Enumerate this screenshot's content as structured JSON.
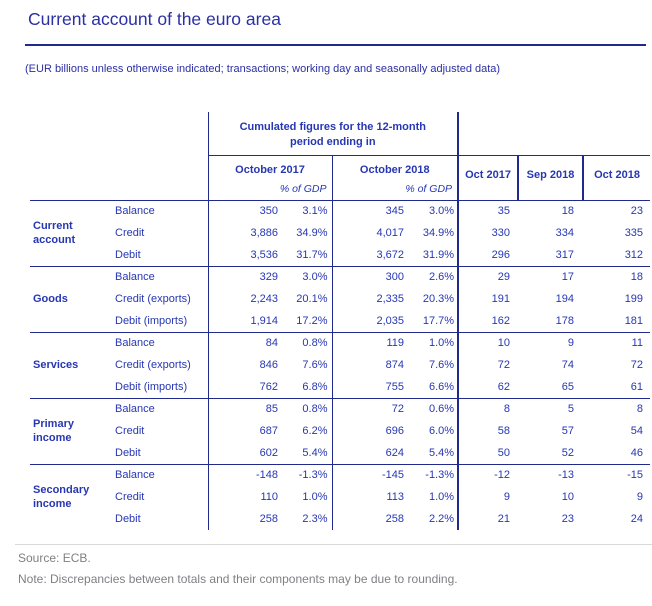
{
  "title": "Current account of the euro area",
  "subtitle": "(EUR billions unless otherwise indicated; transactions; working day and seasonally adjusted data)",
  "colors": {
    "accent_blue": "#2737b2",
    "border_blue": "#202a8c",
    "footer_gray": "#7f8084"
  },
  "table": {
    "header": {
      "cumulated_line1": "Cumulated figures for the 12-month",
      "cumulated_line2": "period ending in",
      "col_groups": [
        {
          "label": "October 2017",
          "sub": "% of GDP"
        },
        {
          "label": "October 2018",
          "sub": "% of GDP"
        }
      ],
      "monthly_cols": [
        "Oct 2017",
        "Sep 2018",
        "Oct 2018"
      ]
    },
    "groups": [
      {
        "name": "Current account",
        "rows": [
          {
            "label": "Balance",
            "values": [
              "350",
              "3.1%",
              "345",
              "3.0%",
              "35",
              "18",
              "23"
            ]
          },
          {
            "label": "Credit",
            "values": [
              "3,886",
              "34.9%",
              "4,017",
              "34.9%",
              "330",
              "334",
              "335"
            ]
          },
          {
            "label": "Debit",
            "values": [
              "3,536",
              "31.7%",
              "3,672",
              "31.9%",
              "296",
              "317",
              "312"
            ]
          }
        ]
      },
      {
        "name": "Goods",
        "rows": [
          {
            "label": "Balance",
            "values": [
              "329",
              "3.0%",
              "300",
              "2.6%",
              "29",
              "17",
              "18"
            ]
          },
          {
            "label": "Credit (exports)",
            "values": [
              "2,243",
              "20.1%",
              "2,335",
              "20.3%",
              "191",
              "194",
              "199"
            ]
          },
          {
            "label": "Debit (imports)",
            "values": [
              "1,914",
              "17.2%",
              "2,035",
              "17.7%",
              "162",
              "178",
              "181"
            ]
          }
        ]
      },
      {
        "name": "Services",
        "rows": [
          {
            "label": "Balance",
            "values": [
              "84",
              "0.8%",
              "119",
              "1.0%",
              "10",
              "9",
              "11"
            ]
          },
          {
            "label": "Credit (exports)",
            "values": [
              "846",
              "7.6%",
              "874",
              "7.6%",
              "72",
              "74",
              "72"
            ]
          },
          {
            "label": "Debit (imports)",
            "values": [
              "762",
              "6.8%",
              "755",
              "6.6%",
              "62",
              "65",
              "61"
            ]
          }
        ]
      },
      {
        "name": "Primary income",
        "rows": [
          {
            "label": "Balance",
            "values": [
              "85",
              "0.8%",
              "72",
              "0.6%",
              "8",
              "5",
              "8"
            ]
          },
          {
            "label": "Credit",
            "values": [
              "687",
              "6.2%",
              "696",
              "6.0%",
              "58",
              "57",
              "54"
            ]
          },
          {
            "label": "Debit",
            "values": [
              "602",
              "5.4%",
              "624",
              "5.4%",
              "50",
              "52",
              "46"
            ]
          }
        ]
      },
      {
        "name": "Secondary income",
        "rows": [
          {
            "label": "Balance",
            "values": [
              "-148",
              "-1.3%",
              "-145",
              "-1.3%",
              "-12",
              "-13",
              "-15"
            ]
          },
          {
            "label": "Credit",
            "values": [
              "110",
              "1.0%",
              "113",
              "1.0%",
              "9",
              "10",
              "9"
            ]
          },
          {
            "label": "Debit",
            "values": [
              "258",
              "2.3%",
              "258",
              "2.2%",
              "21",
              "23",
              "24"
            ]
          }
        ]
      }
    ]
  },
  "footer": {
    "source": "Source: ECB.",
    "note": "Note: Discrepancies between totals and their components may be due to rounding."
  }
}
